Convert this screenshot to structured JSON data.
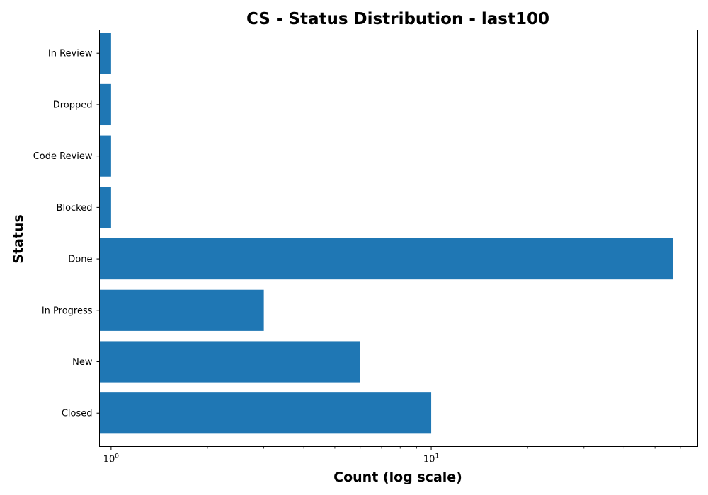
{
  "chart_data": {
    "type": "bar",
    "orientation": "horizontal",
    "title": "CS - Status Distribution - last100",
    "xlabel": "Count (log scale)",
    "ylabel": "Status",
    "x_scale": "log",
    "xlim": [
      0.92,
      68
    ],
    "x_ticks": [
      {
        "base": "10",
        "exp": "0",
        "value": 1
      },
      {
        "base": "10",
        "exp": "1",
        "value": 10
      }
    ],
    "categories": [
      "Closed",
      "New",
      "In Progress",
      "Done",
      "Blocked",
      "Code Review",
      "Dropped",
      "In Review"
    ],
    "values": [
      10,
      6,
      3,
      57,
      1,
      1,
      1,
      1
    ],
    "bar_color": "#1f77b4",
    "grid": false,
    "legend": "none"
  }
}
